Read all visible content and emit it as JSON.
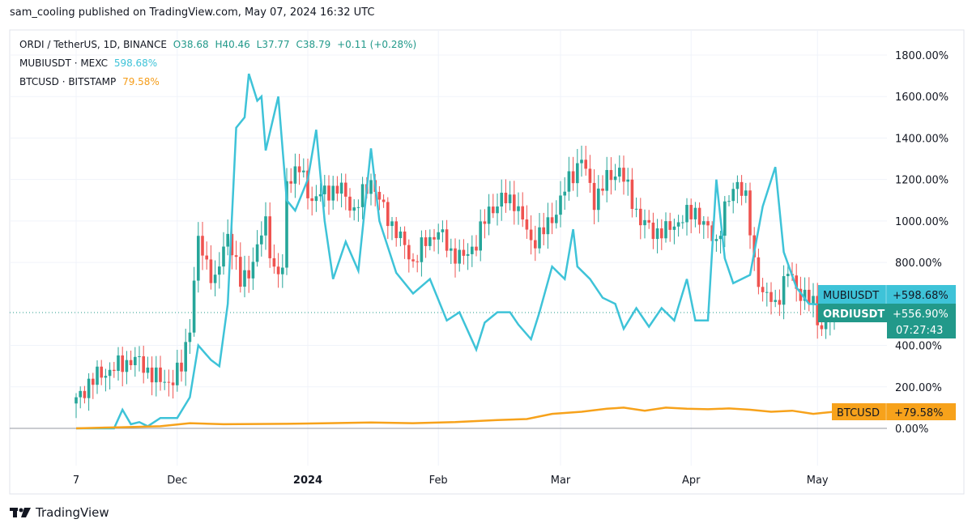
{
  "header": {
    "publisher_line": "sam_cooling published on TradingView.com, May 07, 2024 16:32 UTC"
  },
  "legend": {
    "main": {
      "symbol": "ORDI / TetherUS, 1D, BINANCE",
      "open": "O38.68",
      "high": "H40.46",
      "low": "L37.77",
      "close": "C38.79",
      "change": "+0.11 (+0.28%)"
    },
    "compare1": {
      "symbol": "MUBIUSDT · MEXC",
      "value": "598.68%"
    },
    "compare2": {
      "symbol": "BTCUSD · BITSTAMP",
      "value": "79.58%"
    }
  },
  "price_tags": {
    "mubi": {
      "name": "MUBIUSDT",
      "value": "+598.68%"
    },
    "ordi": {
      "name": "ORDIUSDT",
      "value": "+556.90%",
      "countdown": "07:27:43"
    },
    "btc": {
      "name": "BTCUSD",
      "value": "+79.58%"
    }
  },
  "footer": {
    "brand": "TradingView"
  },
  "colors": {
    "up": "#26a69a",
    "down": "#ef5350",
    "mubi": "#3ec3d8",
    "btc": "#f7a21b",
    "ordi_tag": "#22998a"
  },
  "chart_data": {
    "type": "line",
    "title": "ORDI / TetherUS, 1D, BINANCE",
    "x_unit": "days since Nov 7, 2023",
    "y_unit": "% change",
    "ylim": [
      -100,
      1850
    ],
    "xlim": [
      -15,
      190
    ],
    "y_ticks": [
      "0.00%",
      "200.00%",
      "400.00%",
      "800.00%",
      "1000.00%",
      "1200.00%",
      "1400.00%",
      "1600.00%",
      "1800.00%"
    ],
    "y_tick_values": [
      0,
      200,
      400,
      800,
      1000,
      1200,
      1400,
      1600,
      1800
    ],
    "x_ticks": [
      {
        "label": "7",
        "day": 0
      },
      {
        "label": "Dec",
        "day": 24
      },
      {
        "label": "2024",
        "day": 55
      },
      {
        "label": "Feb",
        "day": 86
      },
      {
        "label": "Mar",
        "day": 115
      },
      {
        "label": "Apr",
        "day": 146
      },
      {
        "label": "May",
        "day": 176
      }
    ],
    "series": [
      {
        "name": "ORDIUSDT",
        "style": "candles",
        "points": [
          [
            0,
            130
          ],
          [
            3,
            220
          ],
          [
            5,
            250
          ],
          [
            8,
            280
          ],
          [
            10,
            300
          ],
          [
            13,
            330
          ],
          [
            15,
            320
          ],
          [
            18,
            260
          ],
          [
            20,
            230
          ],
          [
            23,
            230
          ],
          [
            25,
            300
          ],
          [
            27,
            500
          ],
          [
            29,
            900
          ],
          [
            31,
            800
          ],
          [
            33,
            700
          ],
          [
            36,
            950
          ],
          [
            39,
            700
          ],
          [
            42,
            800
          ],
          [
            45,
            1000
          ],
          [
            47,
            750
          ],
          [
            49,
            750
          ],
          [
            50,
            1200
          ],
          [
            53,
            1250
          ],
          [
            56,
            1100
          ],
          [
            60,
            1150
          ],
          [
            63,
            1150
          ],
          [
            66,
            1050
          ],
          [
            70,
            1200
          ],
          [
            73,
            1050
          ],
          [
            76,
            950
          ],
          [
            80,
            800
          ],
          [
            83,
            900
          ],
          [
            86,
            950
          ],
          [
            89,
            850
          ],
          [
            92,
            820
          ],
          [
            95,
            900
          ],
          [
            98,
            1050
          ],
          [
            101,
            1100
          ],
          [
            104,
            1100
          ],
          [
            108,
            900
          ],
          [
            111,
            950
          ],
          [
            114,
            1050
          ],
          [
            117,
            1200
          ],
          [
            120,
            1300
          ],
          [
            123,
            1100
          ],
          [
            126,
            1200
          ],
          [
            129,
            1250
          ],
          [
            131,
            1150
          ],
          [
            134,
            1000
          ],
          [
            137,
            950
          ],
          [
            140,
            950
          ],
          [
            143,
            1000
          ],
          [
            147,
            1050
          ],
          [
            150,
            950
          ],
          [
            152,
            900
          ],
          [
            154,
            1050
          ],
          [
            157,
            1200
          ],
          [
            159,
            1100
          ],
          [
            161,
            800
          ],
          [
            163,
            650
          ],
          [
            166,
            600
          ],
          [
            169,
            750
          ],
          [
            172,
            650
          ],
          [
            175,
            600
          ],
          [
            177,
            480
          ],
          [
            180,
            557
          ]
        ]
      },
      {
        "name": "MUBIUSDT",
        "style": "line",
        "points": [
          [
            0,
            0
          ],
          [
            9,
            0
          ],
          [
            11,
            90
          ],
          [
            13,
            20
          ],
          [
            15,
            30
          ],
          [
            17,
            10
          ],
          [
            20,
            50
          ],
          [
            24,
            50
          ],
          [
            27,
            150
          ],
          [
            29,
            400
          ],
          [
            32,
            330
          ],
          [
            34,
            300
          ],
          [
            36,
            600
          ],
          [
            38,
            1450
          ],
          [
            40,
            1500
          ],
          [
            41,
            1710
          ],
          [
            43,
            1580
          ],
          [
            44,
            1600
          ],
          [
            45,
            1340
          ],
          [
            48,
            1600
          ],
          [
            50,
            1100
          ],
          [
            52,
            1050
          ],
          [
            55,
            1200
          ],
          [
            57,
            1440
          ],
          [
            59,
            1000
          ],
          [
            61,
            720
          ],
          [
            64,
            900
          ],
          [
            67,
            760
          ],
          [
            70,
            1350
          ],
          [
            72,
            1000
          ],
          [
            76,
            750
          ],
          [
            80,
            650
          ],
          [
            84,
            720
          ],
          [
            88,
            520
          ],
          [
            91,
            560
          ],
          [
            95,
            380
          ],
          [
            97,
            510
          ],
          [
            100,
            560
          ],
          [
            103,
            560
          ],
          [
            105,
            500
          ],
          [
            108,
            430
          ],
          [
            110,
            560
          ],
          [
            113,
            780
          ],
          [
            116,
            720
          ],
          [
            118,
            960
          ],
          [
            119,
            780
          ],
          [
            122,
            720
          ],
          [
            125,
            630
          ],
          [
            128,
            600
          ],
          [
            130,
            480
          ],
          [
            133,
            580
          ],
          [
            136,
            490
          ],
          [
            139,
            580
          ],
          [
            142,
            520
          ],
          [
            145,
            720
          ],
          [
            147,
            520
          ],
          [
            150,
            520
          ],
          [
            152,
            1200
          ],
          [
            154,
            820
          ],
          [
            156,
            700
          ],
          [
            160,
            740
          ],
          [
            163,
            1070
          ],
          [
            166,
            1260
          ],
          [
            168,
            850
          ],
          [
            171,
            680
          ],
          [
            174,
            600
          ],
          [
            176,
            598
          ]
        ]
      },
      {
        "name": "BTCUSD",
        "style": "line",
        "points": [
          [
            0,
            0
          ],
          [
            10,
            5
          ],
          [
            20,
            10
          ],
          [
            27,
            25
          ],
          [
            35,
            20
          ],
          [
            50,
            22
          ],
          [
            60,
            25
          ],
          [
            70,
            28
          ],
          [
            80,
            25
          ],
          [
            90,
            30
          ],
          [
            100,
            40
          ],
          [
            107,
            45
          ],
          [
            113,
            70
          ],
          [
            120,
            80
          ],
          [
            126,
            95
          ],
          [
            130,
            100
          ],
          [
            135,
            85
          ],
          [
            140,
            100
          ],
          [
            145,
            95
          ],
          [
            150,
            92
          ],
          [
            155,
            96
          ],
          [
            160,
            90
          ],
          [
            165,
            80
          ],
          [
            170,
            85
          ],
          [
            175,
            70
          ],
          [
            180,
            80
          ]
        ]
      }
    ]
  }
}
